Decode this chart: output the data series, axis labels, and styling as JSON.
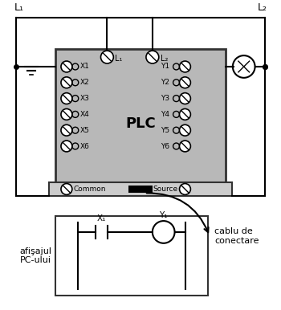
{
  "bg_color": "#ffffff",
  "plc_color": "#b8b8b8",
  "plc_edge": "#333333",
  "bottom_bar_color": "#cccccc",
  "title_L1": "L₁",
  "title_L2": "L₂",
  "plc_text": "PLC",
  "x_terminals": [
    "X1",
    "X2",
    "X3",
    "X4",
    "X5",
    "X6"
  ],
  "y_terminals": [
    "Y1",
    "Y2",
    "Y3",
    "Y4",
    "Y5",
    "Y6"
  ],
  "cable_label": "cablu de\nconectare",
  "pc_label": "afişajul\nPC-ului",
  "contact_label_x": "X₁",
  "coil_label_y": "Y₁",
  "L1_label": "L₁",
  "L2_label": "L₂"
}
